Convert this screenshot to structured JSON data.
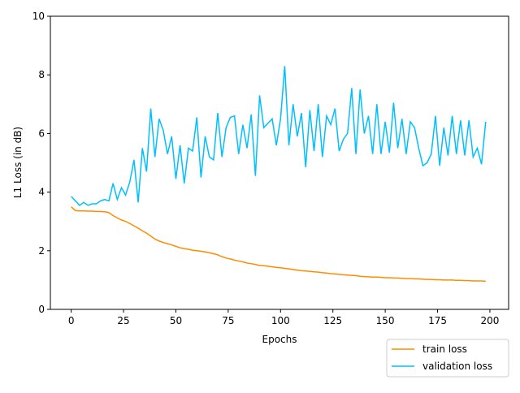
{
  "chart_data": {
    "type": "line",
    "xlabel": "Epochs",
    "ylabel": "L1 Loss (in dB)",
    "x": [
      0,
      2,
      4,
      6,
      8,
      10,
      12,
      14,
      16,
      18,
      20,
      22,
      24,
      26,
      28,
      30,
      32,
      34,
      36,
      38,
      40,
      42,
      44,
      46,
      48,
      50,
      52,
      54,
      56,
      58,
      60,
      62,
      64,
      66,
      68,
      70,
      72,
      74,
      76,
      78,
      80,
      82,
      84,
      86,
      88,
      90,
      92,
      94,
      96,
      98,
      100,
      102,
      104,
      106,
      108,
      110,
      112,
      114,
      116,
      118,
      120,
      122,
      124,
      126,
      128,
      130,
      132,
      134,
      136,
      138,
      140,
      142,
      144,
      146,
      148,
      150,
      152,
      154,
      156,
      158,
      160,
      162,
      164,
      166,
      168,
      170,
      172,
      174,
      176,
      178,
      180,
      182,
      184,
      186,
      188,
      190,
      192,
      194,
      196,
      198
    ],
    "series": [
      {
        "name": "train loss",
        "color": "#ff8c00",
        "values": [
          3.5,
          3.37,
          3.36,
          3.36,
          3.35,
          3.35,
          3.34,
          3.34,
          3.33,
          3.3,
          3.2,
          3.12,
          3.05,
          3.0,
          2.93,
          2.85,
          2.77,
          2.68,
          2.6,
          2.5,
          2.4,
          2.33,
          2.28,
          2.24,
          2.2,
          2.15,
          2.1,
          2.07,
          2.05,
          2.02,
          2.0,
          1.98,
          1.96,
          1.93,
          1.9,
          1.86,
          1.8,
          1.75,
          1.72,
          1.68,
          1.65,
          1.62,
          1.58,
          1.56,
          1.53,
          1.5,
          1.49,
          1.47,
          1.45,
          1.43,
          1.42,
          1.4,
          1.38,
          1.36,
          1.34,
          1.32,
          1.31,
          1.3,
          1.28,
          1.27,
          1.25,
          1.24,
          1.22,
          1.21,
          1.19,
          1.18,
          1.17,
          1.16,
          1.15,
          1.13,
          1.12,
          1.11,
          1.1,
          1.1,
          1.09,
          1.08,
          1.08,
          1.07,
          1.07,
          1.06,
          1.05,
          1.05,
          1.04,
          1.04,
          1.03,
          1.02,
          1.02,
          1.01,
          1.01,
          1.0,
          1.0,
          1.0,
          0.99,
          0.99,
          0.98,
          0.98,
          0.97,
          0.97,
          0.97,
          0.96
        ]
      },
      {
        "name": "validation loss",
        "color": "#00bfff",
        "values": [
          3.85,
          3.7,
          3.55,
          3.65,
          3.55,
          3.6,
          3.6,
          3.7,
          3.75,
          3.7,
          4.3,
          3.75,
          4.15,
          3.9,
          4.35,
          5.1,
          3.65,
          5.5,
          4.7,
          6.85,
          5.2,
          6.5,
          6.1,
          5.3,
          5.9,
          4.45,
          5.6,
          4.3,
          5.5,
          5.4,
          6.55,
          4.5,
          5.9,
          5.2,
          5.1,
          6.7,
          5.2,
          6.2,
          6.55,
          6.6,
          5.3,
          6.3,
          5.5,
          6.65,
          4.55,
          7.3,
          6.2,
          6.35,
          6.5,
          5.6,
          6.5,
          8.3,
          5.6,
          7.0,
          5.9,
          6.7,
          4.85,
          6.8,
          5.4,
          7.0,
          5.2,
          6.6,
          6.3,
          6.85,
          5.4,
          5.8,
          6.0,
          7.55,
          5.3,
          7.5,
          6.0,
          6.6,
          5.3,
          7.0,
          5.3,
          6.4,
          5.35,
          7.05,
          5.5,
          6.5,
          5.3,
          6.4,
          6.2,
          5.5,
          4.9,
          5.0,
          5.3,
          6.6,
          4.9,
          6.2,
          5.25,
          6.6,
          5.3,
          6.45,
          5.25,
          6.45,
          5.2,
          5.5,
          4.95,
          6.4
        ]
      }
    ],
    "xlim": [
      -9.95,
      208.95
    ],
    "xticks": [
      0,
      25,
      50,
      75,
      100,
      125,
      150,
      175,
      200
    ],
    "ylim": [
      0,
      10
    ],
    "yticks": [
      0,
      2,
      4,
      6,
      8,
      10
    ],
    "grid": false,
    "legend": "lower right"
  }
}
